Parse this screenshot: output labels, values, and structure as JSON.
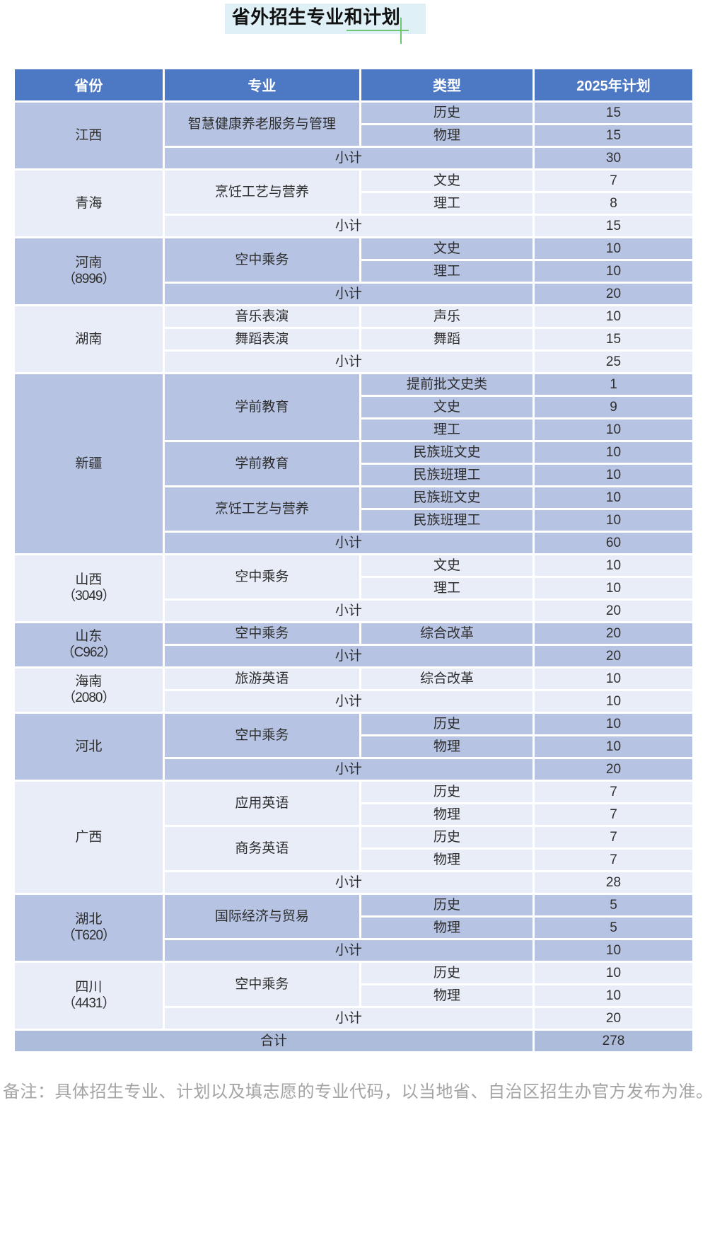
{
  "title": "省外招生专业和计划",
  "note": "备注：具体招生专业、计划以及填志愿的专业代码，以当地省、自治区招生办官方发布为准。",
  "colors": {
    "header_blue": "#4c78c4",
    "group_dark": "#b7c3e2",
    "group_light": "#e9edf8",
    "total_row": "#aebcdc",
    "accent_green": "#70c570",
    "title_highlight": "#dff0f6",
    "note_gray": "#a4a4a4"
  },
  "table": {
    "columns": [
      "省份",
      "专业",
      "类型",
      "2025年计划"
    ],
    "subtotal_label": "小计",
    "total_label": "合计",
    "total_value": "278",
    "groups": [
      {
        "province": "江西",
        "code": "",
        "shade": "dark",
        "subtotal": "30",
        "majors": [
          {
            "name": "智慧健康养老服务与管理",
            "types": [
              {
                "type": "历史",
                "plan": "15"
              },
              {
                "type": "物理",
                "plan": "15"
              }
            ]
          }
        ]
      },
      {
        "province": "青海",
        "code": "",
        "shade": "light",
        "subtotal": "15",
        "majors": [
          {
            "name": "烹饪工艺与营养",
            "types": [
              {
                "type": "文史",
                "plan": "7"
              },
              {
                "type": "理工",
                "plan": "8"
              }
            ]
          }
        ]
      },
      {
        "province": "河南",
        "code": "（8996）",
        "shade": "dark",
        "subtotal": "20",
        "majors": [
          {
            "name": "空中乘务",
            "types": [
              {
                "type": "文史",
                "plan": "10"
              },
              {
                "type": "理工",
                "plan": "10"
              }
            ]
          }
        ]
      },
      {
        "province": "湖南",
        "code": "",
        "shade": "light",
        "subtotal": "25",
        "majors": [
          {
            "name": "音乐表演",
            "types": [
              {
                "type": "声乐",
                "plan": "10"
              }
            ]
          },
          {
            "name": "舞蹈表演",
            "types": [
              {
                "type": "舞蹈",
                "plan": "15"
              }
            ]
          }
        ]
      },
      {
        "province": "新疆",
        "code": "",
        "shade": "dark",
        "subtotal": "60",
        "majors": [
          {
            "name": "学前教育",
            "types": [
              {
                "type": "提前批文史类",
                "plan": "1"
              },
              {
                "type": "文史",
                "plan": "9"
              },
              {
                "type": "理工",
                "plan": "10"
              }
            ]
          },
          {
            "name": "学前教育",
            "types": [
              {
                "type": "民族班文史",
                "plan": "10"
              },
              {
                "type": "民族班理工",
                "plan": "10"
              }
            ]
          },
          {
            "name": "烹饪工艺与营养",
            "types": [
              {
                "type": "民族班文史",
                "plan": "10"
              },
              {
                "type": "民族班理工",
                "plan": "10"
              }
            ]
          }
        ]
      },
      {
        "province": "山西",
        "code": "（3049）",
        "shade": "light",
        "subtotal": "20",
        "majors": [
          {
            "name": "空中乘务",
            "types": [
              {
                "type": "文史",
                "plan": "10"
              },
              {
                "type": "理工",
                "plan": "10"
              }
            ]
          }
        ]
      },
      {
        "province": "山东",
        "code": "（C962）",
        "shade": "dark",
        "subtotal": "20",
        "majors": [
          {
            "name": "空中乘务",
            "types": [
              {
                "type": "综合改革",
                "plan": "20"
              }
            ]
          }
        ]
      },
      {
        "province": "海南",
        "code": "（2080）",
        "shade": "light",
        "subtotal": "10",
        "majors": [
          {
            "name": "旅游英语",
            "types": [
              {
                "type": "综合改革",
                "plan": "10"
              }
            ]
          }
        ]
      },
      {
        "province": "河北",
        "code": "",
        "shade": "dark",
        "subtotal": "20",
        "majors": [
          {
            "name": "空中乘务",
            "types": [
              {
                "type": "历史",
                "plan": "10"
              },
              {
                "type": "物理",
                "plan": "10"
              }
            ]
          }
        ]
      },
      {
        "province": "广西",
        "code": "",
        "shade": "light",
        "subtotal": "28",
        "majors": [
          {
            "name": "应用英语",
            "types": [
              {
                "type": "历史",
                "plan": "7"
              },
              {
                "type": "物理",
                "plan": "7"
              }
            ]
          },
          {
            "name": "商务英语",
            "types": [
              {
                "type": "历史",
                "plan": "7"
              },
              {
                "type": "物理",
                "plan": "7"
              }
            ]
          }
        ]
      },
      {
        "province": "湖北",
        "code": "（T620）",
        "shade": "dark",
        "subtotal": "10",
        "majors": [
          {
            "name": "国际经济与贸易",
            "types": [
              {
                "type": "历史",
                "plan": "5"
              },
              {
                "type": "物理",
                "plan": "5"
              }
            ]
          }
        ]
      },
      {
        "province": "四川",
        "code": "（4431）",
        "shade": "light",
        "subtotal": "20",
        "majors": [
          {
            "name": "空中乘务",
            "types": [
              {
                "type": "历史",
                "plan": "10"
              },
              {
                "type": "物理",
                "plan": "10"
              }
            ]
          }
        ]
      }
    ]
  }
}
